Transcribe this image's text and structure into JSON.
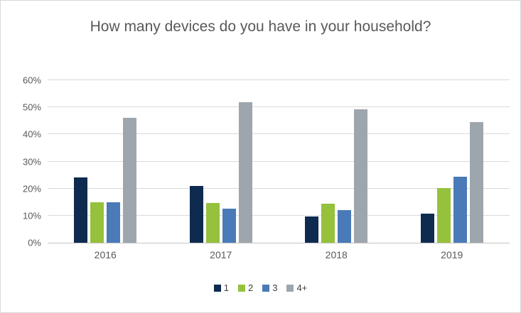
{
  "title": "How many devices do you have in your household?",
  "colors": {
    "series_1": "#0e2a4e",
    "series_2": "#95c13d",
    "series_3": "#4a7ab8",
    "series_4plus": "#9ea6ad",
    "gridline": "#d9d9d9",
    "axis_line": "#c6c6c6",
    "title_text": "#595959",
    "tick_text": "#595959",
    "legend_text": "#404040",
    "frame_border": "#d8d8d8"
  },
  "chart_data": {
    "type": "bar",
    "title": "How many devices do you have in your household?",
    "categories": [
      "2016",
      "2017",
      "2018",
      "2019"
    ],
    "series": [
      {
        "name": "1",
        "color": "#0e2a4e",
        "values": [
          24.1,
          21.0,
          9.8,
          10.7
        ]
      },
      {
        "name": "2",
        "color": "#95c13d",
        "values": [
          15.0,
          14.8,
          14.4,
          20.1
        ]
      },
      {
        "name": "3",
        "color": "#4a7ab8",
        "values": [
          15.0,
          12.6,
          12.1,
          24.3
        ]
      },
      {
        "name": "4+",
        "color": "#9ea6ad",
        "values": [
          46.1,
          51.9,
          49.3,
          44.5
        ]
      }
    ],
    "xlabel": "",
    "ylabel": "",
    "ylim": [
      0,
      60
    ],
    "ytick_step": 10,
    "ytick_labels": [
      "0%",
      "10%",
      "20%",
      "30%",
      "40%",
      "50%",
      "60%"
    ],
    "grid": true,
    "legend_position": "bottom-center"
  }
}
